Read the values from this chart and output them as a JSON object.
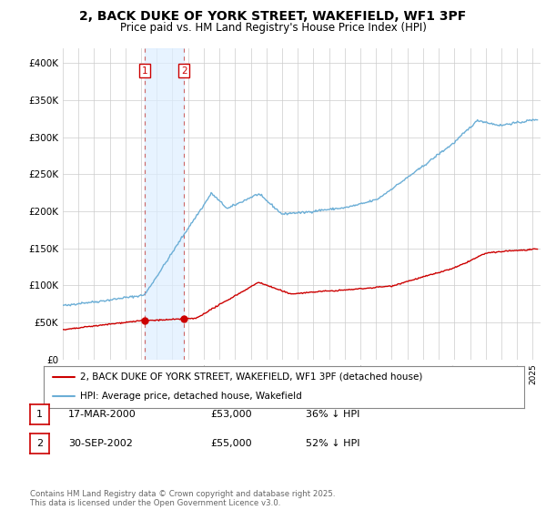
{
  "title": "2, BACK DUKE OF YORK STREET, WAKEFIELD, WF1 3PF",
  "subtitle": "Price paid vs. HM Land Registry's House Price Index (HPI)",
  "title_fontsize": 10,
  "subtitle_fontsize": 8.5,
  "ylabel_ticks": [
    "£0",
    "£50K",
    "£100K",
    "£150K",
    "£200K",
    "£250K",
    "£300K",
    "£350K",
    "£400K"
  ],
  "ytick_vals": [
    0,
    50000,
    100000,
    150000,
    200000,
    250000,
    300000,
    350000,
    400000
  ],
  "ylim": [
    0,
    420000
  ],
  "xlim_start": 1995.0,
  "xlim_end": 2025.5,
  "sale1_x": 2000.21,
  "sale1_y": 53000,
  "sale2_x": 2002.75,
  "sale2_y": 55000,
  "sale1_label": "1",
  "sale2_label": "2",
  "legend_line1": "2, BACK DUKE OF YORK STREET, WAKEFIELD, WF1 3PF (detached house)",
  "legend_line2": "HPI: Average price, detached house, Wakefield",
  "table_row1": [
    "1",
    "17-MAR-2000",
    "£53,000",
    "36% ↓ HPI"
  ],
  "table_row2": [
    "2",
    "30-SEP-2002",
    "£55,000",
    "52% ↓ HPI"
  ],
  "footer": "Contains HM Land Registry data © Crown copyright and database right 2025.\nThis data is licensed under the Open Government Licence v3.0.",
  "hpi_color": "#6baed6",
  "sale_color": "#cc0000",
  "shade_color": "#ddeeff",
  "background_color": "#ffffff",
  "grid_color": "#cccccc"
}
